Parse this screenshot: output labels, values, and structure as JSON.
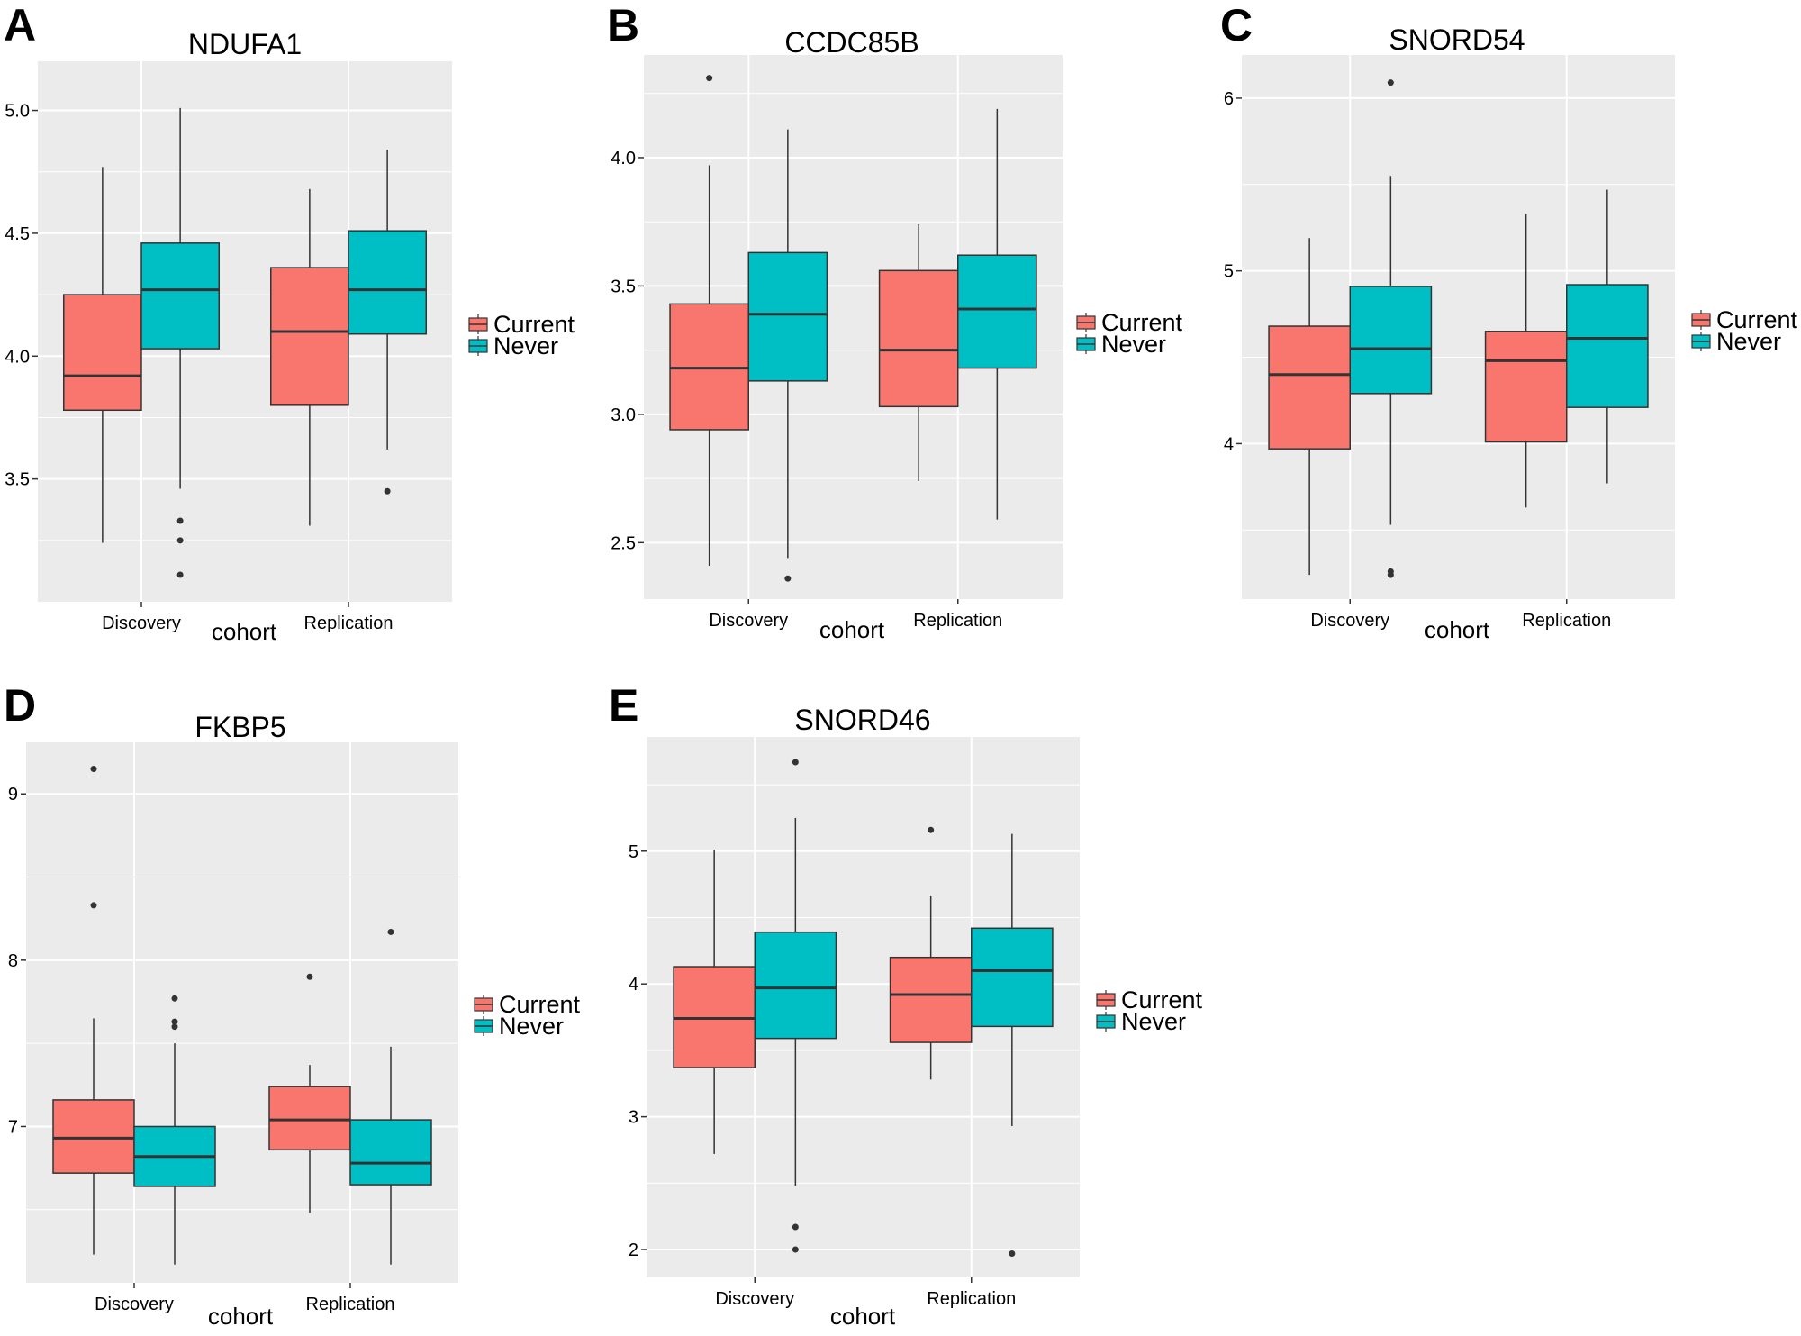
{
  "figure": {
    "legend_labels": [
      "Current",
      "Never"
    ],
    "colors": {
      "Current": "#f8766d",
      "Never": "#00bfc4",
      "panel_bg": "#ebebeb",
      "grid": "#ffffff",
      "outline": "#333333"
    }
  },
  "chart_data": [
    {
      "type": "box",
      "panel_letter": "A",
      "title": "NDUFA1",
      "xlabel": "cohort",
      "ylabel": "",
      "categories": [
        "Discovery",
        "Replication"
      ],
      "ylim": [
        3.0,
        5.2
      ],
      "yticks": [
        3.5,
        4.0,
        4.5,
        5.0
      ],
      "ytick_labels": [
        "3.5",
        "4.0",
        "4.5",
        "5.0"
      ],
      "legend": {
        "title": "",
        "entries": [
          "Current",
          "Never"
        ]
      },
      "series": [
        {
          "name": "Current",
          "boxes": [
            {
              "category": "Discovery",
              "lower_whisker": 3.24,
              "q1": 3.78,
              "median": 3.92,
              "q3": 4.25,
              "upper_whisker": 4.77,
              "outliers": []
            },
            {
              "category": "Replication",
              "lower_whisker": 3.31,
              "q1": 3.8,
              "median": 4.1,
              "q3": 4.36,
              "upper_whisker": 4.68,
              "outliers": []
            }
          ]
        },
        {
          "name": "Never",
          "boxes": [
            {
              "category": "Discovery",
              "lower_whisker": 3.46,
              "q1": 4.03,
              "median": 4.27,
              "q3": 4.46,
              "upper_whisker": 5.01,
              "outliers": [
                3.33,
                3.25,
                3.11
              ]
            },
            {
              "category": "Replication",
              "lower_whisker": 3.62,
              "q1": 4.09,
              "median": 4.27,
              "q3": 4.51,
              "upper_whisker": 4.84,
              "outliers": [
                3.45
              ]
            }
          ]
        }
      ]
    },
    {
      "type": "box",
      "panel_letter": "B",
      "title": "CCDC85B",
      "xlabel": "cohort",
      "ylabel": "",
      "categories": [
        "Discovery",
        "Replication"
      ],
      "ylim": [
        2.28,
        4.4
      ],
      "yticks": [
        2.5,
        3.0,
        3.5,
        4.0
      ],
      "ytick_labels": [
        "2.5",
        "3.0",
        "3.5",
        "4.0"
      ],
      "legend": {
        "title": "",
        "entries": [
          "Current",
          "Never"
        ]
      },
      "series": [
        {
          "name": "Current",
          "boxes": [
            {
              "category": "Discovery",
              "lower_whisker": 2.41,
              "q1": 2.94,
              "median": 3.18,
              "q3": 3.43,
              "upper_whisker": 3.97,
              "outliers": [
                4.31
              ]
            },
            {
              "category": "Replication",
              "lower_whisker": 2.74,
              "q1": 3.03,
              "median": 3.25,
              "q3": 3.56,
              "upper_whisker": 3.74,
              "outliers": []
            }
          ]
        },
        {
          "name": "Never",
          "boxes": [
            {
              "category": "Discovery",
              "lower_whisker": 2.44,
              "q1": 3.13,
              "median": 3.39,
              "q3": 3.63,
              "upper_whisker": 4.11,
              "outliers": [
                2.36
              ]
            },
            {
              "category": "Replication",
              "lower_whisker": 2.59,
              "q1": 3.18,
              "median": 3.41,
              "q3": 3.62,
              "upper_whisker": 4.19,
              "outliers": []
            }
          ]
        }
      ]
    },
    {
      "type": "box",
      "panel_letter": "C",
      "title": "SNORD54",
      "xlabel": "cohort",
      "ylabel": "",
      "categories": [
        "Discovery",
        "Replication"
      ],
      "ylim": [
        3.1,
        6.25
      ],
      "yticks": [
        4,
        5,
        6
      ],
      "ytick_labels": [
        "4",
        "5",
        "6"
      ],
      "legend": {
        "title": "",
        "entries": [
          "Current",
          "Never"
        ]
      },
      "series": [
        {
          "name": "Current",
          "boxes": [
            {
              "category": "Discovery",
              "lower_whisker": 3.24,
              "q1": 3.97,
              "median": 4.4,
              "q3": 4.68,
              "upper_whisker": 5.19,
              "outliers": []
            },
            {
              "category": "Replication",
              "lower_whisker": 3.63,
              "q1": 4.01,
              "median": 4.48,
              "q3": 4.65,
              "upper_whisker": 5.33,
              "outliers": []
            }
          ]
        },
        {
          "name": "Never",
          "boxes": [
            {
              "category": "Discovery",
              "lower_whisker": 3.53,
              "q1": 4.29,
              "median": 4.55,
              "q3": 4.91,
              "upper_whisker": 5.55,
              "outliers": [
                6.09,
                3.26,
                3.24
              ]
            },
            {
              "category": "Replication",
              "lower_whisker": 3.77,
              "q1": 4.21,
              "median": 4.61,
              "q3": 4.92,
              "upper_whisker": 5.47,
              "outliers": []
            }
          ]
        }
      ]
    },
    {
      "type": "box",
      "panel_letter": "D",
      "title": "FKBP5",
      "xlabel": "cohort",
      "ylabel": "",
      "categories": [
        "Discovery",
        "Replication"
      ],
      "ylim": [
        6.06,
        9.31
      ],
      "yticks": [
        7,
        8,
        9
      ],
      "ytick_labels": [
        "7",
        "8",
        "9"
      ],
      "legend": {
        "title": "",
        "entries": [
          "Current",
          "Never"
        ]
      },
      "series": [
        {
          "name": "Current",
          "boxes": [
            {
              "category": "Discovery",
              "lower_whisker": 6.23,
              "q1": 6.72,
              "median": 6.93,
              "q3": 7.16,
              "upper_whisker": 7.65,
              "outliers": [
                9.15,
                8.33
              ]
            },
            {
              "category": "Replication",
              "lower_whisker": 6.48,
              "q1": 6.86,
              "median": 7.04,
              "q3": 7.24,
              "upper_whisker": 7.37,
              "outliers": [
                7.9
              ]
            }
          ]
        },
        {
          "name": "Never",
          "boxes": [
            {
              "category": "Discovery",
              "lower_whisker": 6.17,
              "q1": 6.64,
              "median": 6.82,
              "q3": 7.0,
              "upper_whisker": 7.5,
              "outliers": [
                7.77,
                7.63,
                7.6
              ]
            },
            {
              "category": "Replication",
              "lower_whisker": 6.17,
              "q1": 6.65,
              "median": 6.78,
              "q3": 7.04,
              "upper_whisker": 7.48,
              "outliers": [
                8.17
              ]
            }
          ]
        }
      ]
    },
    {
      "type": "box",
      "panel_letter": "E",
      "title": "SNORD46",
      "xlabel": "cohort",
      "ylabel": "",
      "categories": [
        "Discovery",
        "Replication"
      ],
      "ylim": [
        1.79,
        5.86
      ],
      "yticks": [
        2,
        3,
        4,
        5
      ],
      "ytick_labels": [
        "2",
        "3",
        "4",
        "5"
      ],
      "legend": {
        "title": "",
        "entries": [
          "Current",
          "Never"
        ]
      },
      "series": [
        {
          "name": "Current",
          "boxes": [
            {
              "category": "Discovery",
              "lower_whisker": 2.72,
              "q1": 3.37,
              "median": 3.74,
              "q3": 4.13,
              "upper_whisker": 5.01,
              "outliers": []
            },
            {
              "category": "Replication",
              "lower_whisker": 3.28,
              "q1": 3.56,
              "median": 3.92,
              "q3": 4.2,
              "upper_whisker": 4.66,
              "outliers": [
                5.16
              ]
            }
          ]
        },
        {
          "name": "Never",
          "boxes": [
            {
              "category": "Discovery",
              "lower_whisker": 2.48,
              "q1": 3.59,
              "median": 3.97,
              "q3": 4.39,
              "upper_whisker": 5.25,
              "outliers": [
                5.67,
                2.17,
                2.0
              ]
            },
            {
              "category": "Replication",
              "lower_whisker": 2.93,
              "q1": 3.68,
              "median": 4.1,
              "q3": 4.42,
              "upper_whisker": 5.13,
              "outliers": [
                1.97
              ]
            }
          ]
        }
      ]
    }
  ]
}
